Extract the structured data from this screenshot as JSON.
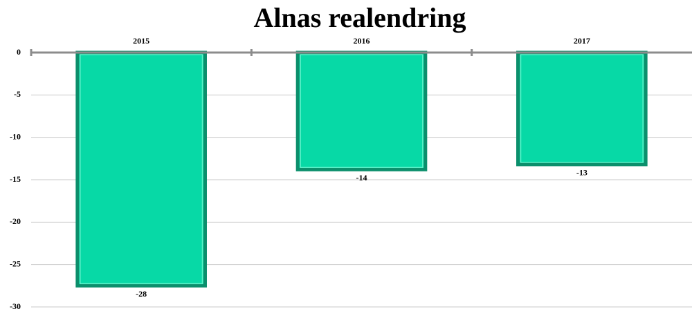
{
  "chart_data": {
    "type": "bar",
    "title": "Alnas realendring",
    "categories": [
      "2015",
      "2016",
      "2017"
    ],
    "values": [
      -27.5,
      -13.8,
      -13.2
    ],
    "value_labels": [
      "-28",
      "-14",
      "-13"
    ],
    "color": "#07d9a6",
    "ylim": [
      -30,
      0
    ],
    "yticks": [
      0,
      -5,
      -10,
      -15,
      -20,
      -25,
      -30
    ],
    "grid": true
  }
}
